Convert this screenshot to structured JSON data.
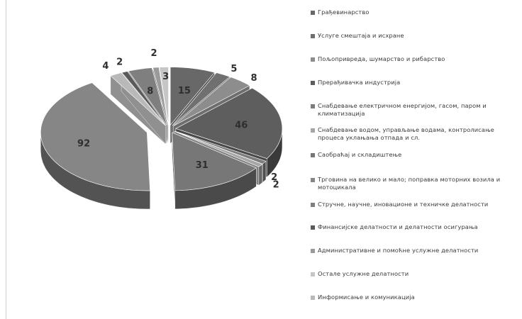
{
  "chart_data": {
    "type": "pie",
    "style": "3d-exploded",
    "legend_position": "right",
    "slices": [
      {
        "label": "Грађевинарство",
        "value": 15,
        "color": "#686868"
      },
      {
        "label": "Услуге смештаја и исхране",
        "value": 5,
        "color": "#707070"
      },
      {
        "label": "Пољопривреда, шумарство и рибарство",
        "value": 8,
        "color": "#8d8d8d"
      },
      {
        "label": "Прерађивачка индустрија",
        "value": 46,
        "color": "#5e5e5e"
      },
      {
        "label": "Снабдевање електричном енергијом, гасом, паром и климатизација",
        "value": 2,
        "color": "#7d7d7d"
      },
      {
        "label": "Снабдевање водом, управљање водама, контролисање процеса уклањања отпада и сл.",
        "value": 2,
        "color": "#a6a6a6"
      },
      {
        "label": "Саобраћај и складиштење",
        "value": 31,
        "color": "#777777"
      },
      {
        "label": "Трговина на велико и мало; поправка моторних возила и мотоцикала",
        "value": 92,
        "color": "#868686"
      },
      {
        "label": "Информисање и комуникација",
        "value": 4,
        "color": "#b9b9b9"
      },
      {
        "label": "Финансијске делатности и делатности осигурања",
        "value": 2,
        "color": "#5a5a5a"
      },
      {
        "label": "Стручне, научне, иновационе и техничке делатности",
        "value": 8,
        "color": "#7f7f7f"
      },
      {
        "label": "Административне и помоћне услужне делатности",
        "value": 2,
        "color": "#9a9a9a"
      },
      {
        "label": "Остале услужне делатности",
        "value": 3,
        "color": "#c6c6c6"
      }
    ],
    "legend_order": [
      0,
      1,
      2,
      3,
      4,
      5,
      6,
      7,
      10,
      9,
      11,
      12,
      8
    ]
  }
}
